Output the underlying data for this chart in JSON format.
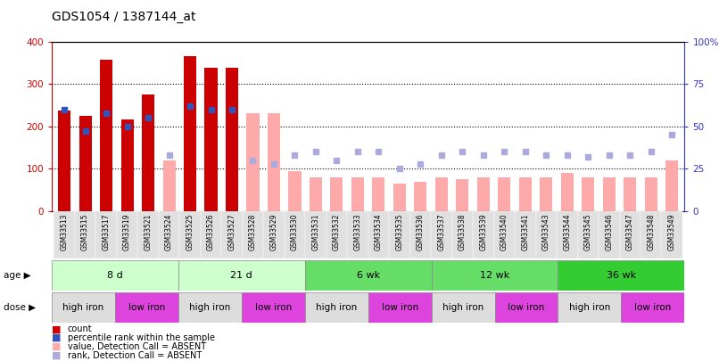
{
  "title": "GDS1054 / 1387144_at",
  "samples": [
    "GSM33513",
    "GSM33515",
    "GSM33517",
    "GSM33519",
    "GSM33521",
    "GSM33524",
    "GSM33525",
    "GSM33526",
    "GSM33527",
    "GSM33528",
    "GSM33529",
    "GSM33530",
    "GSM33531",
    "GSM33532",
    "GSM33533",
    "GSM33534",
    "GSM33535",
    "GSM33536",
    "GSM33537",
    "GSM33538",
    "GSM33539",
    "GSM33540",
    "GSM33541",
    "GSM33543",
    "GSM33544",
    "GSM33545",
    "GSM33546",
    "GSM33547",
    "GSM33548",
    "GSM33549"
  ],
  "count_values": [
    237,
    225,
    358,
    217,
    275,
    null,
    365,
    338,
    338,
    null,
    null,
    null,
    null,
    null,
    null,
    null,
    null,
    null,
    null,
    null,
    null,
    null,
    null,
    null,
    null,
    null,
    null,
    null,
    null,
    null
  ],
  "count_ranks": [
    60,
    47,
    58,
    50,
    55,
    null,
    62,
    60,
    60,
    null,
    null,
    null,
    null,
    null,
    null,
    null,
    null,
    null,
    null,
    null,
    null,
    null,
    null,
    null,
    null,
    null,
    null,
    null,
    null,
    null
  ],
  "absent_values": [
    null,
    null,
    null,
    null,
    null,
    120,
    null,
    null,
    null,
    230,
    230,
    95,
    80,
    80,
    80,
    80,
    65,
    70,
    80,
    75,
    80,
    80,
    80,
    80,
    90,
    80,
    80,
    80,
    80,
    120
  ],
  "absent_ranks": [
    null,
    null,
    null,
    null,
    null,
    33,
    null,
    null,
    null,
    30,
    28,
    33,
    35,
    30,
    35,
    35,
    25,
    28,
    33,
    35,
    33,
    35,
    35,
    33,
    33,
    32,
    33,
    33,
    35,
    45
  ],
  "bar_color_present": "#cc0000",
  "bar_color_absent": "#ffaaaa",
  "rank_color_present": "#3355bb",
  "rank_color_absent": "#aaaadd",
  "ylim_left": [
    0,
    400
  ],
  "ylim_right": [
    0,
    100
  ],
  "yticks_left": [
    0,
    100,
    200,
    300,
    400
  ],
  "yticks_right": [
    0,
    25,
    50,
    75,
    100
  ],
  "ytick_labels_right": [
    "0",
    "25",
    "50",
    "75",
    "100%"
  ],
  "age_groups": [
    {
      "label": "8 d",
      "start": 0,
      "end": 6,
      "color": "#ccffcc"
    },
    {
      "label": "21 d",
      "start": 6,
      "end": 12,
      "color": "#ccffcc"
    },
    {
      "label": "6 wk",
      "start": 12,
      "end": 18,
      "color": "#66dd66"
    },
    {
      "label": "12 wk",
      "start": 18,
      "end": 24,
      "color": "#66dd66"
    },
    {
      "label": "36 wk",
      "start": 24,
      "end": 30,
      "color": "#33cc33"
    }
  ],
  "dose_groups": [
    {
      "label": "high iron",
      "start": 0,
      "end": 3,
      "color": "#dddddd"
    },
    {
      "label": "low iron",
      "start": 3,
      "end": 6,
      "color": "#dd44dd"
    },
    {
      "label": "high iron",
      "start": 6,
      "end": 9,
      "color": "#dddddd"
    },
    {
      "label": "low iron",
      "start": 9,
      "end": 12,
      "color": "#dd44dd"
    },
    {
      "label": "high iron",
      "start": 12,
      "end": 15,
      "color": "#dddddd"
    },
    {
      "label": "low iron",
      "start": 15,
      "end": 18,
      "color": "#dd44dd"
    },
    {
      "label": "high iron",
      "start": 18,
      "end": 21,
      "color": "#dddddd"
    },
    {
      "label": "low iron",
      "start": 21,
      "end": 24,
      "color": "#dd44dd"
    },
    {
      "label": "high iron",
      "start": 24,
      "end": 27,
      "color": "#dddddd"
    },
    {
      "label": "low iron",
      "start": 27,
      "end": 30,
      "color": "#dd44dd"
    }
  ],
  "title_fontsize": 10,
  "axis_color_left": "#cc0000",
  "axis_color_right": "#3333cc",
  "background_color": "#ffffff",
  "legend_items": [
    {
      "color": "#cc0000",
      "label": "count"
    },
    {
      "color": "#3355bb",
      "label": "percentile rank within the sample"
    },
    {
      "color": "#ffaaaa",
      "label": "value, Detection Call = ABSENT"
    },
    {
      "color": "#aaaadd",
      "label": "rank, Detection Call = ABSENT"
    }
  ]
}
